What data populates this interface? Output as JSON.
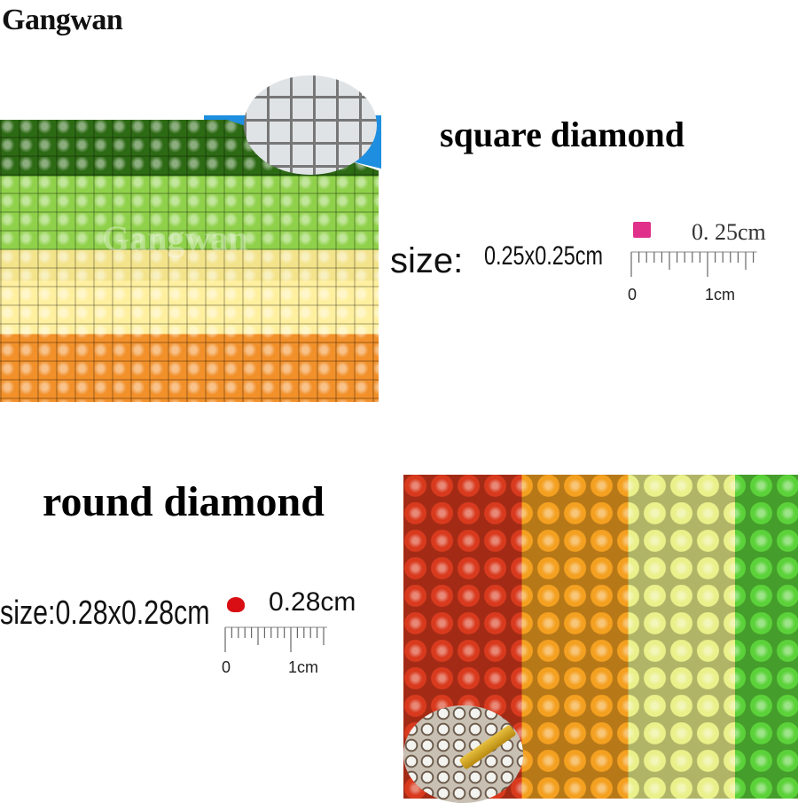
{
  "brand": "Gangwan",
  "square": {
    "title": "square diamond",
    "size_label": "size:",
    "size_value": "0.25x0.25cm",
    "gem_size": "0. 25cm",
    "ruler_zero": "0",
    "ruler_unit": "1cm",
    "gem_color": "#e0308a",
    "watermark": "Gangwan"
  },
  "round": {
    "title": "round diamond",
    "size_text": "size:0.28x0.28cm",
    "gem_size": "0.28cm",
    "ruler_zero": "0",
    "ruler_unit": "1cm",
    "gem_color": "#d80e14"
  }
}
